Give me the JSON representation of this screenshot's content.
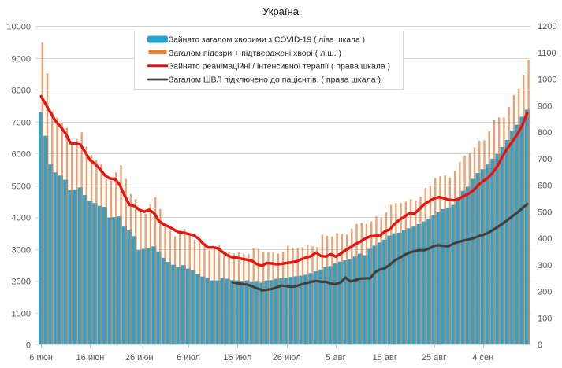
{
  "chart_data": {
    "type": "bar",
    "title": "Україна",
    "xlabel": "",
    "ylabel": "",
    "grid": true,
    "legend_position": "top-center",
    "category_count": 100,
    "x_tick_labels": [
      {
        "index": 0,
        "label": "6 июн"
      },
      {
        "index": 10,
        "label": "16 июн"
      },
      {
        "index": 20,
        "label": "26 июн"
      },
      {
        "index": 30,
        "label": "6 июл"
      },
      {
        "index": 40,
        "label": "16 июл"
      },
      {
        "index": 50,
        "label": "26 июл"
      },
      {
        "index": 60,
        "label": "5 авг"
      },
      {
        "index": 70,
        "label": "15 авг"
      },
      {
        "index": 80,
        "label": "25 авг"
      },
      {
        "index": 90,
        "label": "4 сен"
      }
    ],
    "y_left": {
      "min": 0,
      "max": 10000,
      "step": 1000,
      "tick_labels": [
        "0",
        "1000",
        "2000",
        "3000",
        "4000",
        "5000",
        "6000",
        "7000",
        "8000",
        "9000",
        "10000"
      ]
    },
    "y_right": {
      "min": 0,
      "max": 1200,
      "step": 100,
      "tick_labels": [
        "0",
        "100",
        "200",
        "300",
        "400",
        "500",
        "600",
        "700",
        "800",
        "900",
        "1000",
        "1100",
        "1200"
      ]
    },
    "series": [
      {
        "name": "Зайнято загалом хворими з COVID-19 ( ліва шкала )",
        "type": "bar",
        "axis": "left",
        "color": "#27a4d6",
        "values": [
          7300,
          6550,
          5650,
          5400,
          5300,
          5170,
          4840,
          4870,
          4930,
          4690,
          4520,
          4440,
          4350,
          4320,
          3980,
          4000,
          4020,
          3700,
          3580,
          3400,
          2960,
          3000,
          3010,
          3080,
          2920,
          2720,
          2590,
          2500,
          2430,
          2490,
          2380,
          2320,
          2210,
          2130,
          2090,
          2010,
          2010,
          2090,
          2060,
          2020,
          2010,
          1990,
          2010,
          1970,
          1990,
          1940,
          2010,
          2020,
          2060,
          2080,
          2100,
          2120,
          2140,
          2160,
          2190,
          2240,
          2290,
          2350,
          2420,
          2460,
          2540,
          2600,
          2640,
          2670,
          2760,
          2850,
          2800,
          3000,
          3100,
          3200,
          3290,
          3420,
          3490,
          3510,
          3590,
          3650,
          3700,
          3780,
          3860,
          3950,
          4070,
          4150,
          4250,
          4300,
          4380,
          4550,
          4820,
          4950,
          5200,
          5380,
          5500,
          5650,
          5830,
          5980,
          6200,
          6420,
          6720,
          6900,
          7150,
          7370
        ]
      },
      {
        "name": "Загалом підозри + підтверджені хворі ( л.ш. )",
        "type": "bar",
        "axis": "left",
        "color": "#e0803c",
        "values": [
          9480,
          8510,
          7320,
          7110,
          6960,
          6800,
          6330,
          6450,
          6660,
          6220,
          5940,
          5780,
          5670,
          5180,
          5140,
          5400,
          5630,
          5200,
          4720,
          4560,
          4150,
          4100,
          4400,
          4620,
          4250,
          3780,
          3570,
          3390,
          3570,
          3630,
          3410,
          3280,
          3200,
          3080,
          2950,
          3000,
          3120,
          2850,
          2900,
          2850,
          2910,
          2850,
          2830,
          3010,
          3000,
          2910,
          2900,
          2910,
          2850,
          2910,
          3090,
          3040,
          3010,
          3050,
          3120,
          3080,
          3060,
          3450,
          3410,
          3390,
          3490,
          3470,
          3450,
          3640,
          3780,
          3820,
          3780,
          3860,
          4020,
          3980,
          4150,
          4380,
          4440,
          4440,
          4480,
          4560,
          4520,
          4640,
          4910,
          4990,
          5220,
          5280,
          5300,
          5230,
          5450,
          5730,
          5930,
          6000,
          6190,
          6390,
          6410,
          6700,
          7040,
          7130,
          7130,
          7460,
          7830,
          8030,
          8470,
          8940
        ]
      },
      {
        "name": "Зайнято реанімаційні / інтенсивної терапії ( права шкала )",
        "type": "line",
        "axis": "right",
        "color": "#e8140f",
        "values": [
          935,
          903,
          871,
          840,
          820,
          794,
          758,
          757,
          753,
          724,
          694,
          680,
          660,
          637,
          625,
          624,
          602,
          561,
          526,
          521,
          508,
          500,
          507,
          495,
          465,
          452,
          444,
          433,
          423,
          421,
          416,
          412,
          400,
          380,
          365,
          366,
          362,
          348,
          335,
          328,
          326,
          322,
          319,
          314,
          302,
          296,
          307,
          305,
          302,
          304,
          307,
          309,
          313,
          321,
          327,
          333,
          346,
          333,
          331,
          340,
          331,
          342,
          355,
          366,
          378,
          387,
          399,
          407,
          409,
          409,
          426,
          433,
          454,
          470,
          481,
          495,
          492,
          510,
          528,
          539,
          550,
          555,
          551,
          545,
          543,
          548,
          558,
          567,
          580,
          600,
          615,
          628,
          647,
          674,
          710,
          740,
          765,
          792,
          826,
          872
        ]
      },
      {
        "name": "Загалом ШВЛ  підключено до пацієнтів, ( права шкала )",
        "type": "line",
        "axis": "right",
        "color": "#404040",
        "values": [
          null,
          null,
          null,
          null,
          null,
          null,
          null,
          null,
          null,
          null,
          null,
          null,
          null,
          null,
          null,
          null,
          null,
          null,
          null,
          null,
          null,
          null,
          null,
          null,
          null,
          null,
          null,
          null,
          null,
          null,
          null,
          null,
          null,
          null,
          null,
          null,
          null,
          null,
          null,
          234,
          230,
          228,
          225,
          219,
          211,
          204,
          206,
          209,
          215,
          222,
          220,
          217,
          220,
          226,
          231,
          236,
          239,
          236,
          236,
          229,
          227,
          234,
          252,
          237,
          242,
          248,
          249,
          249,
          272,
          282,
          287,
          300,
          316,
          326,
          337,
          346,
          351,
          355,
          355,
          361,
          371,
          374,
          371,
          370,
          380,
          386,
          391,
          395,
          400,
          407,
          413,
          420,
          431,
          443,
          455,
          469,
          483,
          497,
          513,
          529
        ]
      }
    ]
  }
}
